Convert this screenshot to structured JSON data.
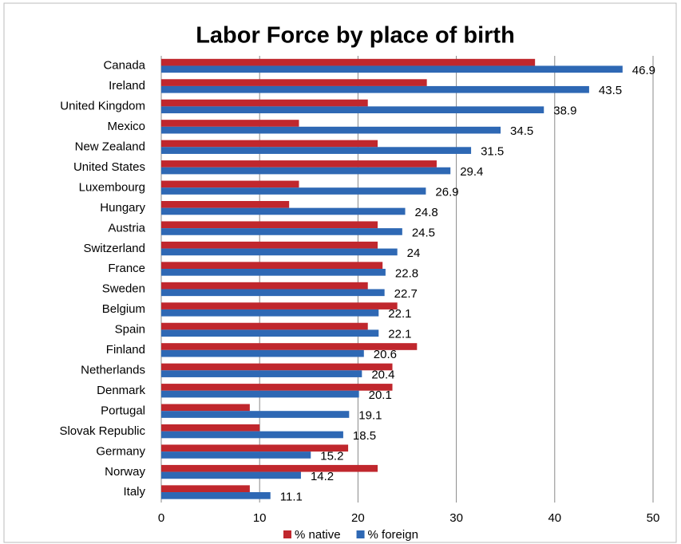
{
  "chart_data": {
    "type": "hbar",
    "title": "Labor Force by place of birth",
    "categories": [
      "Canada",
      "Ireland",
      "United Kingdom",
      "Mexico",
      "New Zealand",
      "United States",
      "Luxembourg",
      "Hungary",
      "Austria",
      "Switzerland",
      "France",
      "Sweden",
      "Belgium",
      "Spain",
      "Finland",
      "Netherlands",
      "Denmark",
      "Portugal",
      "Slovak Republic",
      "Germany",
      "Norway",
      "Italy"
    ],
    "series": [
      {
        "name": "% native",
        "color": "#c0272d",
        "values": [
          38,
          27,
          21,
          14,
          22,
          28,
          14,
          13,
          22,
          22,
          22.5,
          21,
          24,
          21,
          26,
          23.5,
          23.5,
          9,
          10,
          19,
          22,
          9
        ]
      },
      {
        "name": "% foreign",
        "color": "#2e68b4",
        "values": [
          46.9,
          43.5,
          38.9,
          34.5,
          31.5,
          29.4,
          26.9,
          24.8,
          24.5,
          24,
          22.8,
          22.7,
          22.1,
          22.1,
          20.6,
          20.4,
          20.1,
          19.1,
          18.5,
          15.2,
          14.2,
          11.1
        ],
        "show_value_labels": true
      }
    ],
    "xlim": [
      0,
      50
    ],
    "xticks": [
      0,
      10,
      20,
      30,
      40,
      50
    ],
    "grid": true,
    "legend": "bottom"
  }
}
